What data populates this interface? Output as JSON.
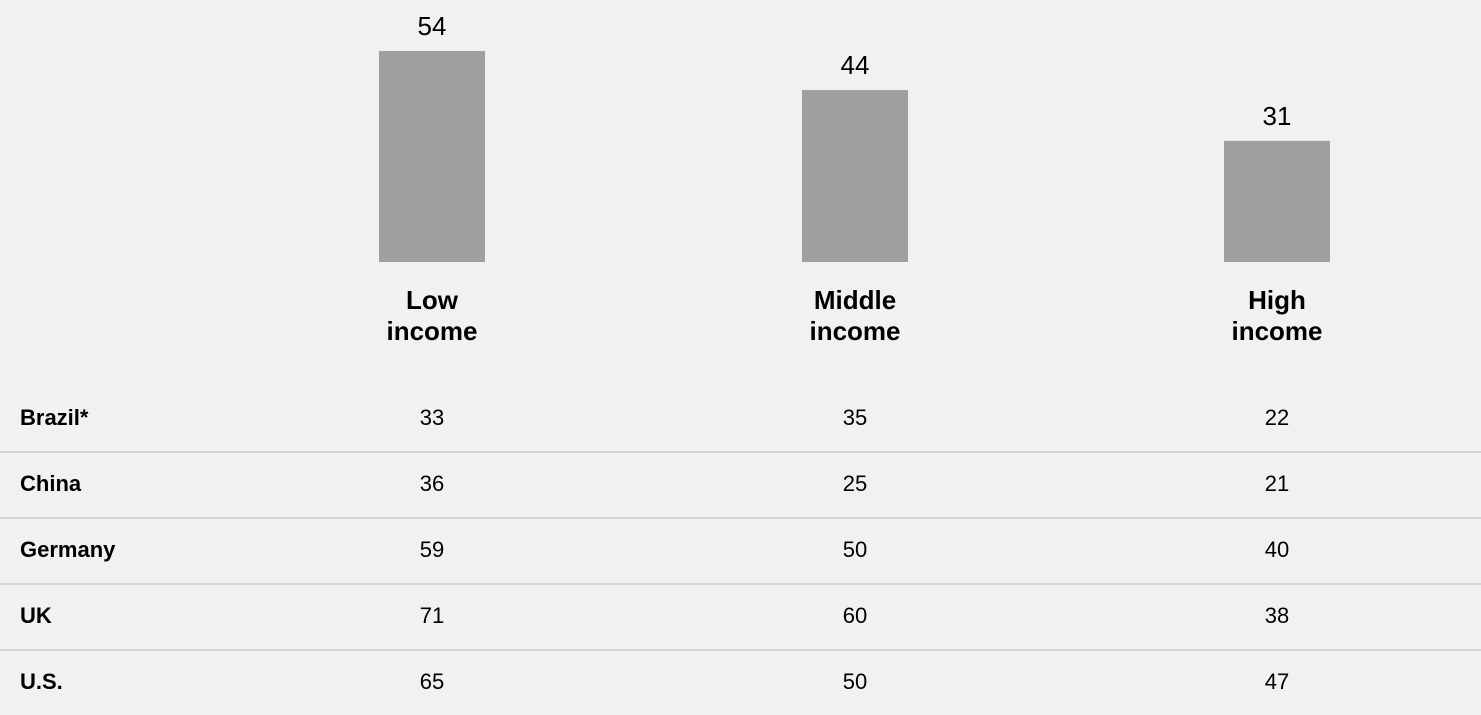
{
  "chart_data": {
    "type": "bar",
    "categories": [
      [
        "Low",
        "income"
      ],
      [
        "Middle",
        "income"
      ],
      [
        "High",
        "income"
      ]
    ],
    "values": [
      54,
      44,
      31
    ],
    "ylim": [
      0,
      54
    ],
    "bar_color": "#a09f9d",
    "title": "",
    "xlabel": "",
    "ylabel": "",
    "grid": false,
    "table": {
      "rows": [
        {
          "label": "Brazil*",
          "values": [
            "33",
            "35",
            "22"
          ]
        },
        {
          "label": "China",
          "values": [
            "36",
            "25",
            "21"
          ]
        },
        {
          "label": "Germany",
          "values": [
            "59",
            "50",
            "40"
          ]
        },
        {
          "label": "UK",
          "values": [
            "71",
            "60",
            "38"
          ]
        },
        {
          "label": "U.S.",
          "values": [
            "65",
            "50",
            "47"
          ]
        }
      ]
    }
  },
  "colors": {
    "background": "#f1f1f1",
    "divider": "#d4d4d4",
    "text": "#000000"
  }
}
